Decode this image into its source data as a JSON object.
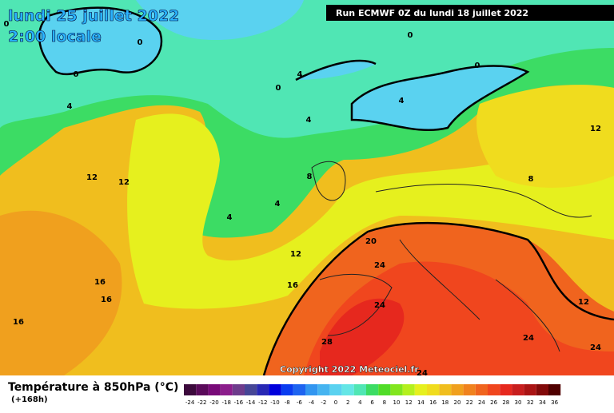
{
  "header": {
    "date": "lundi 25 juillet 2022",
    "time": "2:00 locale",
    "run": "Run ECMWF 0Z du lundi 18 juillet 2022"
  },
  "copyright": "Copyright 2022 Meteociel.fr",
  "contour_labels": [
    "0",
    "0",
    "0",
    "0",
    "0",
    "0",
    "4",
    "4",
    "4",
    "4",
    "4",
    "4",
    "8",
    "8",
    "12",
    "12",
    "12",
    "12",
    "12",
    "16",
    "16",
    "16",
    "16",
    "20",
    "24",
    "24",
    "24",
    "24",
    "24",
    "28"
  ],
  "legend": {
    "title": "Température à 850hPa (°C)",
    "subtitle": "(+168h)",
    "ticks": [
      -24,
      -22,
      -20,
      -18,
      -16,
      -14,
      -12,
      -10,
      -8,
      -6,
      -4,
      -2,
      0,
      2,
      4,
      6,
      8,
      10,
      12,
      14,
      16,
      18,
      20,
      22,
      24,
      26,
      28,
      30,
      32,
      34,
      36
    ],
    "colors": [
      "#3c0a3c",
      "#5a0a5a",
      "#780a78",
      "#8c1e8c",
      "#6e3c8c",
      "#464696",
      "#2828b4",
      "#0000dc",
      "#0a3cf0",
      "#1e64f0",
      "#3296f0",
      "#46b4f0",
      "#5ad2f0",
      "#64e6e6",
      "#50e6b4",
      "#3cdc64",
      "#50dc28",
      "#82e61e",
      "#b4f01e",
      "#e6f01e",
      "#f0dc1e",
      "#f0be1e",
      "#f0a01e",
      "#f0821e",
      "#f0641e",
      "#f0461e",
      "#e6281e",
      "#c81e1e",
      "#aa1414",
      "#820a0a",
      "#500000"
    ]
  }
}
